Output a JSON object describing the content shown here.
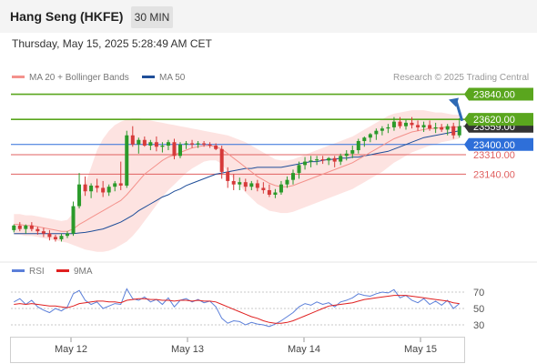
{
  "header": {
    "instrument": "Hang Seng (HKFE)",
    "interval": "30 MIN"
  },
  "timestamp": "Thursday, May 15, 2025 5:28:49 AM CET",
  "legend": {
    "ma20": "MA 20 + Bollinger Bands",
    "ma50": "MA 50",
    "ma20_color": "#f4928c",
    "ma50_color": "#1f4e99"
  },
  "copyright": "Research © 2025 Trading Central",
  "rsi_legend": {
    "rsi": "RSI",
    "ma9": "9MA",
    "rsi_color": "#5b7fd9",
    "ma9_color": "#e02020"
  },
  "colors": {
    "up": "#2a9a2a",
    "down": "#d63a3a",
    "resistance": "#5aa61e",
    "support_blue": "#2e6fd9",
    "support_red": "#e06060",
    "bollinger_fill": "#fde3e1",
    "current_price_tag": "#333333"
  },
  "chart_data": [
    {
      "type": "candlestick",
      "x_tick_labels": [
        "May 12",
        "May 13",
        "May 14",
        "May 15"
      ],
      "ylim": [
        22450,
        23900
      ],
      "levels": [
        {
          "value": 23840,
          "label": "23840.00",
          "role": "resistance",
          "color": "#5aa61e"
        },
        {
          "value": 23620,
          "label": "23620.00",
          "role": "resistance",
          "color": "#5aa61e"
        },
        {
          "value": 23400,
          "label": "23400.00",
          "role": "pivot",
          "color": "#2e6fd9"
        },
        {
          "value": 23310,
          "label": "23310.00",
          "role": "support",
          "color": "#e06060"
        },
        {
          "value": 23140,
          "label": "23140.00",
          "role": "support",
          "color": "#e06060"
        }
      ],
      "current_price": {
        "value": 23559,
        "label": "23559.00"
      },
      "series": [
        {
          "type": "ohlc",
          "values": [
            [
              22650,
              22700,
              22630,
              22690
            ],
            [
              22690,
              22720,
              22640,
              22660
            ],
            [
              22660,
              22700,
              22620,
              22690
            ],
            [
              22690,
              22720,
              22640,
              22660
            ],
            [
              22660,
              22680,
              22610,
              22640
            ],
            [
              22640,
              22670,
              22590,
              22620
            ],
            [
              22620,
              22650,
              22560,
              22590
            ],
            [
              22590,
              22610,
              22550,
              22570
            ],
            [
              22570,
              22620,
              22550,
              22600
            ],
            [
              22600,
              22640,
              22580,
              22620
            ],
            [
              22620,
              22900,
              22600,
              22860
            ],
            [
              22860,
              23150,
              22840,
              23050
            ],
            [
              23050,
              23120,
              22950,
              22990
            ],
            [
              22990,
              23060,
              22930,
              23040
            ],
            [
              23040,
              23100,
              22980,
              23020
            ],
            [
              23020,
              23080,
              22940,
              22980
            ],
            [
              22980,
              23050,
              22950,
              23030
            ],
            [
              23030,
              23080,
              22990,
              23060
            ],
            [
              23060,
              23250,
              23000,
              23040
            ],
            [
              23040,
              23520,
              23020,
              23480
            ],
            [
              23480,
              23560,
              23380,
              23400
            ],
            [
              23400,
              23460,
              23320,
              23440
            ],
            [
              23440,
              23470,
              23380,
              23390
            ],
            [
              23390,
              23440,
              23350,
              23420
            ],
            [
              23420,
              23470,
              23340,
              23380
            ],
            [
              23380,
              23420,
              23330,
              23390
            ],
            [
              23390,
              23440,
              23350,
              23420
            ],
            [
              23420,
              23450,
              23270,
              23300
            ],
            [
              23300,
              23420,
              23280,
              23400
            ],
            [
              23400,
              23430,
              23360,
              23410
            ],
            [
              23410,
              23440,
              23370,
              23400
            ],
            [
              23400,
              23430,
              23370,
              23410
            ],
            [
              23410,
              23430,
              23380,
              23400
            ],
            [
              23400,
              23420,
              23370,
              23390
            ],
            [
              23390,
              23410,
              23350,
              23360
            ],
            [
              23360,
              23390,
              23100,
              23160
            ],
            [
              23160,
              23200,
              23020,
              23080
            ],
            [
              23080,
              23140,
              23000,
              23050
            ],
            [
              23050,
              23110,
              23000,
              23070
            ],
            [
              23070,
              23100,
              22990,
              23030
            ],
            [
              23030,
              23080,
              23000,
              23060
            ],
            [
              23060,
              23090,
              22990,
              23020
            ],
            [
              23020,
              23070,
              22970,
              23000
            ],
            [
              23000,
              23050,
              22940,
              22960
            ],
            [
              22960,
              23010,
              22930,
              22980
            ],
            [
              22980,
              23080,
              22960,
              23050
            ],
            [
              23050,
              23120,
              23020,
              23090
            ],
            [
              23090,
              23180,
              23050,
              23150
            ],
            [
              23150,
              23250,
              23100,
              23220
            ],
            [
              23220,
              23290,
              23180,
              23250
            ],
            [
              23250,
              23300,
              23200,
              23260
            ],
            [
              23260,
              23300,
              23220,
              23270
            ],
            [
              23270,
              23300,
              23230,
              23260
            ],
            [
              23260,
              23290,
              23220,
              23280
            ],
            [
              23280,
              23300,
              23200,
              23250
            ],
            [
              23250,
              23320,
              23220,
              23300
            ],
            [
              23300,
              23350,
              23260,
              23320
            ],
            [
              23320,
              23390,
              23280,
              23350
            ],
            [
              23350,
              23450,
              23320,
              23430
            ],
            [
              23430,
              23470,
              23380,
              23460
            ],
            [
              23460,
              23500,
              23420,
              23490
            ],
            [
              23490,
              23540,
              23440,
              23520
            ],
            [
              23520,
              23560,
              23480,
              23540
            ],
            [
              23540,
              23580,
              23500,
              23550
            ],
            [
              23550,
              23640,
              23520,
              23600
            ],
            [
              23600,
              23640,
              23540,
              23560
            ],
            [
              23560,
              23620,
              23530,
              23590
            ],
            [
              23590,
              23640,
              23540,
              23570
            ],
            [
              23570,
              23610,
              23520,
              23550
            ],
            [
              23550,
              23600,
              23510,
              23570
            ],
            [
              23570,
              23610,
              23520,
              23540
            ],
            [
              23540,
              23590,
              23500,
              23550
            ],
            [
              23550,
              23580,
              23510,
              23530
            ],
            [
              23530,
              23580,
              23480,
              23560
            ],
            [
              23560,
              23590,
              23450,
              23480
            ],
            [
              23480,
              23630,
              23460,
              23559
            ]
          ]
        }
      ],
      "ma20": [
        22700,
        22700,
        22690,
        22690,
        22680,
        22670,
        22660,
        22650,
        22640,
        22640,
        22660,
        22700,
        22730,
        22760,
        22790,
        22820,
        22850,
        22880,
        22910,
        22960,
        23020,
        23080,
        23140,
        23180,
        23220,
        23260,
        23290,
        23310,
        23330,
        23350,
        23370,
        23380,
        23390,
        23390,
        23380,
        23360,
        23320,
        23280,
        23240,
        23200,
        23160,
        23120,
        23090,
        23060,
        23040,
        23030,
        23030,
        23040,
        23060,
        23080,
        23100,
        23120,
        23140,
        23160,
        23180,
        23200,
        23220,
        23240,
        23270,
        23300,
        23330,
        23360,
        23390,
        23420,
        23450,
        23470,
        23490,
        23510,
        23520,
        23530,
        23540,
        23540,
        23550,
        23550,
        23550,
        23555
      ],
      "ma50": [
        22620,
        22620,
        22620,
        22620,
        22620,
        22620,
        22620,
        22620,
        22620,
        22620,
        22620,
        22625,
        22630,
        22640,
        22650,
        22660,
        22680,
        22700,
        22720,
        22750,
        22780,
        22820,
        22850,
        22880,
        22910,
        22940,
        22960,
        22990,
        23010,
        23040,
        23060,
        23080,
        23100,
        23120,
        23140,
        23150,
        23160,
        23170,
        23180,
        23190,
        23190,
        23200,
        23200,
        23200,
        23200,
        23200,
        23210,
        23220,
        23230,
        23240,
        23250,
        23250,
        23260,
        23270,
        23270,
        23280,
        23280,
        23290,
        23290,
        23300,
        23310,
        23320,
        23330,
        23340,
        23360,
        23380,
        23400,
        23420,
        23440,
        23460,
        23470,
        23480,
        23490,
        23500,
        23510,
        23520
      ],
      "bb_upper": [
        22790,
        22790,
        22780,
        22780,
        22770,
        22760,
        22750,
        22740,
        22730,
        22740,
        22800,
        22900,
        23050,
        23200,
        23350,
        23450,
        23520,
        23570,
        23600,
        23620,
        23630,
        23630,
        23620,
        23610,
        23600,
        23590,
        23580,
        23570,
        23560,
        23550,
        23540,
        23530,
        23520,
        23510,
        23500,
        23490,
        23480,
        23460,
        23440,
        23420,
        23390,
        23360,
        23330,
        23300,
        23270,
        23260,
        23260,
        23270,
        23290,
        23310,
        23330,
        23350,
        23370,
        23390,
        23410,
        23430,
        23450,
        23470,
        23500,
        23530,
        23560,
        23590,
        23620,
        23650,
        23670,
        23680,
        23690,
        23700,
        23700,
        23700,
        23690,
        23680,
        23680,
        23670,
        23660,
        23660
      ],
      "bb_lower": [
        22610,
        22610,
        22600,
        22600,
        22590,
        22580,
        22570,
        22560,
        22550,
        22540,
        22520,
        22500,
        22480,
        22470,
        22460,
        22460,
        22470,
        22490,
        22520,
        22550,
        22600,
        22660,
        22730,
        22800,
        22870,
        22940,
        23000,
        23050,
        23100,
        23150,
        23190,
        23220,
        23250,
        23260,
        23260,
        23230,
        23160,
        23100,
        23040,
        22980,
        22930,
        22880,
        22850,
        22820,
        22810,
        22800,
        22800,
        22810,
        22830,
        22850,
        22870,
        22890,
        22910,
        22930,
        22950,
        22970,
        22990,
        23010,
        23040,
        23070,
        23100,
        23130,
        23160,
        23200,
        23240,
        23270,
        23300,
        23330,
        23350,
        23370,
        23390,
        23400,
        23420,
        23430,
        23440,
        23450
      ],
      "forecast_arrow": {
        "from": 23559,
        "to": 23840
      }
    },
    {
      "type": "line",
      "title": "RSI",
      "ylim": [
        20,
        80
      ],
      "y_tick_labels": [
        "70",
        "50",
        "30"
      ],
      "series": [
        {
          "name": "RSI",
          "values": [
            58,
            62,
            55,
            60,
            52,
            48,
            45,
            50,
            47,
            52,
            68,
            72,
            60,
            55,
            58,
            50,
            53,
            56,
            55,
            74,
            62,
            60,
            64,
            58,
            61,
            55,
            63,
            52,
            60,
            62,
            58,
            61,
            57,
            59,
            52,
            38,
            32,
            35,
            34,
            30,
            33,
            31,
            30,
            28,
            31,
            35,
            40,
            45,
            52,
            56,
            54,
            58,
            55,
            57,
            52,
            58,
            60,
            63,
            68,
            66,
            65,
            68,
            70,
            69,
            73,
            63,
            66,
            60,
            57,
            62,
            55,
            59,
            54,
            60,
            50,
            56
          ]
        },
        {
          "name": "9MA",
          "values": [
            55,
            56,
            55,
            56,
            55,
            54,
            53,
            53,
            52,
            51,
            53,
            56,
            57,
            58,
            59,
            59,
            58,
            58,
            57,
            60,
            61,
            62,
            62,
            61,
            61,
            60,
            60,
            59,
            60,
            60,
            59,
            60,
            59,
            59,
            58,
            55,
            52,
            49,
            46,
            43,
            40,
            38,
            35,
            33,
            32,
            32,
            33,
            35,
            38,
            41,
            44,
            47,
            50,
            53,
            54,
            55,
            56,
            57,
            59,
            61,
            62,
            63,
            64,
            65,
            66,
            66,
            66,
            65,
            64,
            63,
            62,
            61,
            60,
            59,
            57,
            56
          ]
        }
      ]
    }
  ]
}
